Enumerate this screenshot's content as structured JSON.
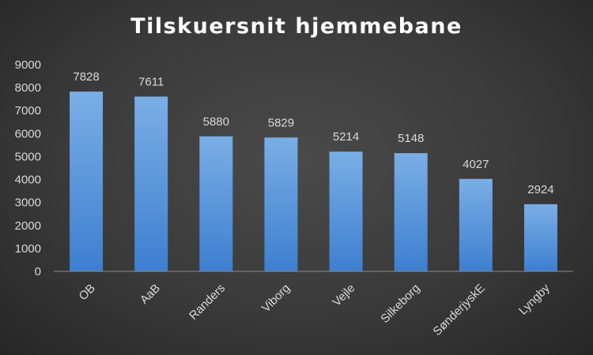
{
  "chart_data": {
    "type": "bar",
    "title": "Tilskuersnit hjemmebane",
    "categories": [
      "OB",
      "AaB",
      "Randers",
      "Viborg",
      "Vejle",
      "Silkeborg",
      "SønderjyskE",
      "Lyngby"
    ],
    "values": [
      7828,
      7611,
      5880,
      5829,
      5214,
      5148,
      4027,
      2924
    ],
    "ylim": [
      0,
      9000
    ],
    "yticks": [
      0,
      1000,
      2000,
      3000,
      4000,
      5000,
      6000,
      7000,
      8000,
      9000
    ],
    "xlabel": "",
    "ylabel": "",
    "grid": false,
    "legend": "none",
    "data_labels": true,
    "bar_color_top": "#7aaee6",
    "bar_color_bottom": "#3d7fcf",
    "background_color": "#3a3a3a",
    "text_color": "#d9d9d9"
  }
}
